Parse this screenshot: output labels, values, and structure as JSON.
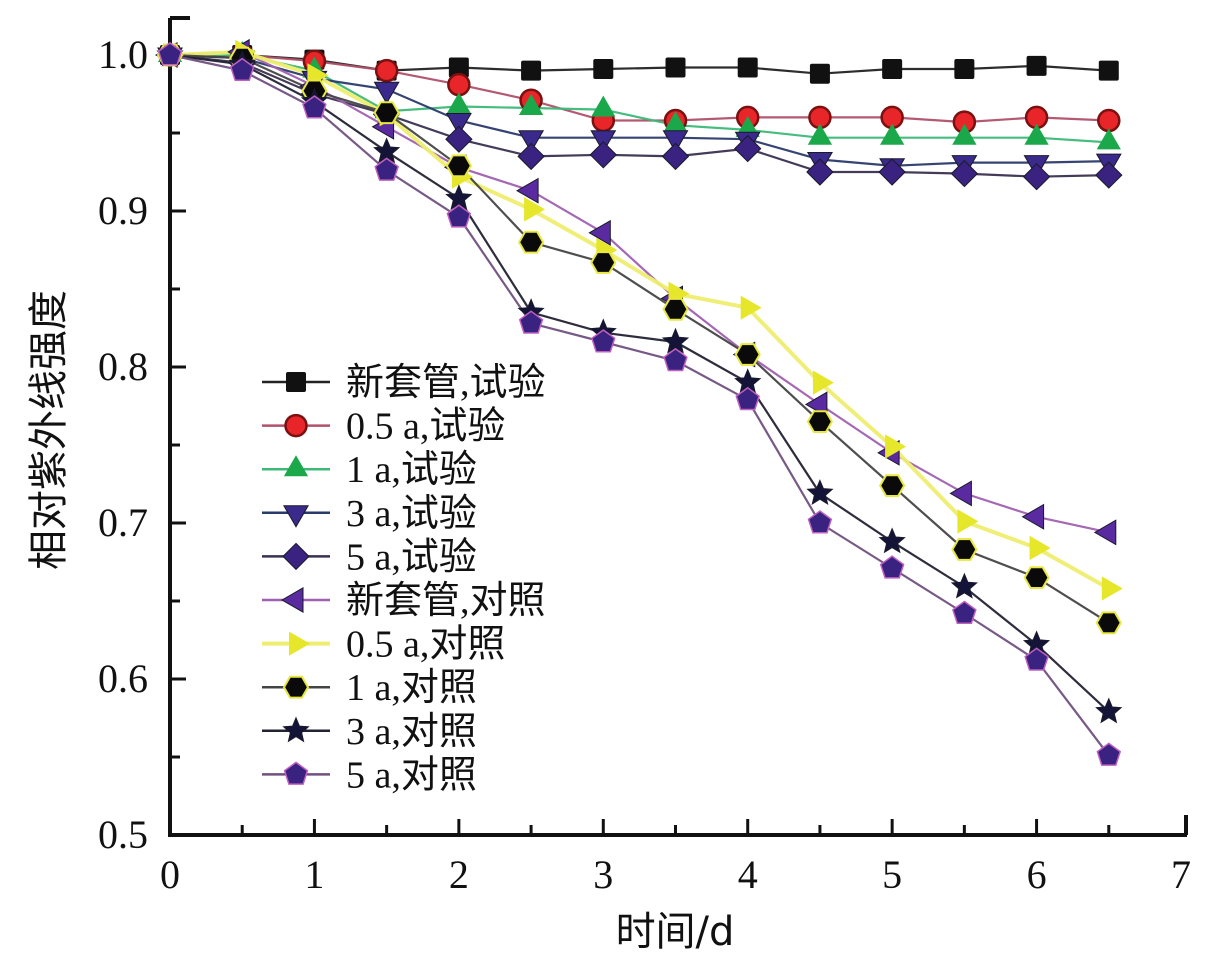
{
  "chart_data": {
    "type": "line",
    "title": "",
    "xlabel": "时间/d",
    "ylabel": "相对紫外线强度",
    "xlim": [
      0,
      7
    ],
    "ylim": [
      0.5,
      1.0
    ],
    "xticks": [
      0,
      1,
      2,
      3,
      4,
      5,
      6,
      7
    ],
    "xtick_labels": [
      "0",
      "1",
      "2",
      "3",
      "4",
      "5",
      "6",
      "7"
    ],
    "yticks": [
      0.5,
      0.6,
      0.7,
      0.8,
      0.9,
      1.0
    ],
    "ytick_labels": [
      "0.5",
      "0.6",
      "0.7",
      "0.8",
      "0.9",
      "1.0"
    ],
    "grid": false,
    "legend_position": "center-left",
    "x": [
      0,
      0.5,
      1,
      1.5,
      2,
      2.5,
      3,
      3.5,
      4,
      4.5,
      5,
      5.5,
      6,
      6.5
    ],
    "series": [
      {
        "name": "新套管,试验",
        "marker": "square",
        "color": "#111111",
        "line_color": "#222222",
        "values": [
          1.0,
          1.0,
          0.997,
          0.99,
          0.992,
          0.99,
          0.991,
          0.992,
          0.992,
          0.988,
          0.991,
          0.991,
          0.993,
          0.99
        ]
      },
      {
        "name": "0.5 a,试验",
        "marker": "circle",
        "color": "#e8262a",
        "line_color": "#b0506a",
        "values": [
          1.0,
          1.0,
          0.996,
          0.99,
          0.981,
          0.971,
          0.958,
          0.958,
          0.96,
          0.96,
          0.96,
          0.957,
          0.96,
          0.958
        ]
      },
      {
        "name": "1 a,试验",
        "marker": "triangle-up",
        "color": "#1aa84a",
        "line_color": "#3cb878",
        "values": [
          1.0,
          1.0,
          0.99,
          0.964,
          0.967,
          0.966,
          0.965,
          0.955,
          0.952,
          0.947,
          0.947,
          0.947,
          0.947,
          0.944
        ]
      },
      {
        "name": "3 a,试验",
        "marker": "triangle-down",
        "color": "#3a2a8c",
        "line_color": "#2a3a6a",
        "values": [
          1.0,
          0.998,
          0.985,
          0.978,
          0.958,
          0.947,
          0.947,
          0.947,
          0.946,
          0.933,
          0.929,
          0.931,
          0.931,
          0.932
        ]
      },
      {
        "name": "5 a,试验",
        "marker": "diamond",
        "color": "#3a2280",
        "line_color": "#3a3050",
        "values": [
          1.0,
          0.995,
          0.975,
          0.962,
          0.946,
          0.935,
          0.936,
          0.935,
          0.94,
          0.925,
          0.925,
          0.924,
          0.922,
          0.923
        ]
      },
      {
        "name": "新套管,对照",
        "marker": "triangle-left",
        "color": "#5a2aa0",
        "line_color": "#a060b0",
        "values": [
          1.0,
          1.002,
          0.98,
          0.954,
          0.928,
          0.913,
          0.886,
          0.844,
          0.808,
          0.776,
          0.745,
          0.719,
          0.704,
          0.694
        ]
      },
      {
        "name": "0.5 a,对照",
        "marker": "triangle-right",
        "color": "#e6e62a",
        "line_color": "#eeee70",
        "values": [
          1.0,
          1.002,
          0.987,
          0.962,
          0.922,
          0.901,
          0.875,
          0.847,
          0.838,
          0.79,
          0.749,
          0.701,
          0.684,
          0.658
        ]
      },
      {
        "name": "1 a,对照",
        "marker": "hexagon",
        "color": "#0a0a0a",
        "line_color": "#444444",
        "values": [
          1.0,
          0.998,
          0.977,
          0.963,
          0.929,
          0.88,
          0.867,
          0.837,
          0.808,
          0.765,
          0.724,
          0.683,
          0.665,
          0.636
        ]
      },
      {
        "name": "3 a,对照",
        "marker": "star",
        "color": "#141438",
        "line_color": "#222233",
        "values": [
          1.0,
          0.994,
          0.97,
          0.938,
          0.908,
          0.835,
          0.822,
          0.816,
          0.79,
          0.719,
          0.688,
          0.659,
          0.622,
          0.579
        ]
      },
      {
        "name": "5 a,对照",
        "marker": "pentagon",
        "color": "#3a2280",
        "line_color": "#705080",
        "values": [
          1.0,
          0.99,
          0.966,
          0.926,
          0.896,
          0.828,
          0.816,
          0.804,
          0.779,
          0.7,
          0.671,
          0.642,
          0.612,
          0.551
        ]
      }
    ]
  }
}
